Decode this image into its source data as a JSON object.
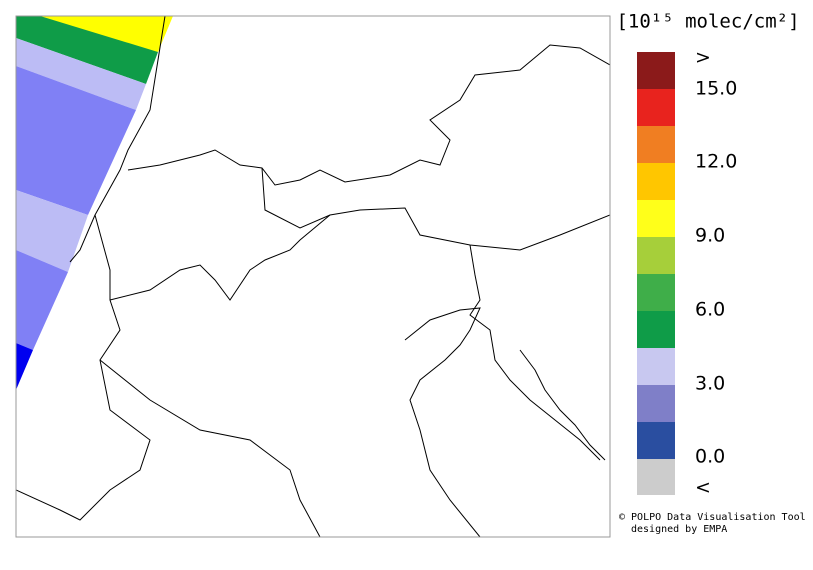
{
  "legend": {
    "title": "[10¹⁵ molec/cm²]",
    "labels": [
      ">",
      "15.0",
      "12.0",
      "9.0",
      "6.0",
      "3.0",
      "0.0",
      "<"
    ]
  },
  "credit": {
    "line1": "© POLPO Data Visualisation Tool",
    "line2": "designed by EMPA"
  }
}
